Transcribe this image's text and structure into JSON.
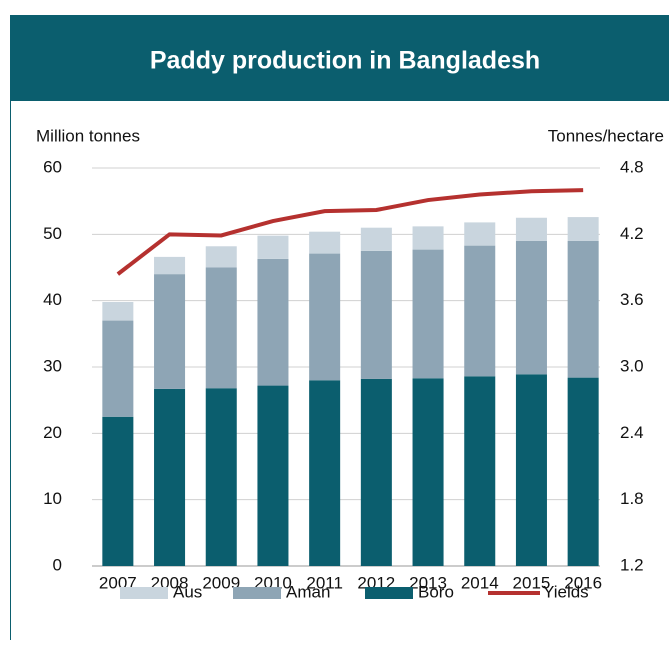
{
  "chart_data": {
    "type": "bar",
    "title": "Paddy production in Bangladesh",
    "y_label": "Million tonnes",
    "y2_label": "Tonnes/hectare",
    "categories": [
      "2007",
      "2008",
      "2009",
      "2010",
      "2011",
      "2012",
      "2013",
      "2014",
      "2015",
      "2016"
    ],
    "stacked": true,
    "series": [
      {
        "name": "Aus",
        "color": "#c9d5de",
        "values": [
          2.8,
          2.6,
          3.2,
          3.5,
          3.3,
          3.5,
          3.5,
          3.5,
          3.5,
          3.6
        ]
      },
      {
        "name": "Aman",
        "color": "#8ea5b5",
        "values": [
          14.5,
          17.3,
          18.2,
          19.1,
          19.1,
          19.3,
          19.4,
          19.7,
          20.1,
          20.6
        ]
      },
      {
        "name": "Boro",
        "color": "#0b5e6e",
        "values": [
          22.5,
          26.7,
          26.8,
          27.2,
          28.0,
          28.2,
          28.3,
          28.6,
          28.9,
          28.4
        ]
      },
      {
        "name": "Yields",
        "color": "#b5312f",
        "type": "line",
        "axis": "y2",
        "values": [
          3.84,
          4.2,
          4.19,
          4.32,
          4.41,
          4.42,
          4.51,
          4.56,
          4.59,
          4.6
        ]
      }
    ],
    "ylim": [
      0,
      60
    ],
    "yticks": [
      0,
      10,
      20,
      30,
      40,
      50,
      60
    ],
    "y2lim": [
      1.2,
      4.8
    ],
    "y2ticks": [
      1.2,
      1.8,
      2.4,
      {
        "value": 3,
        "label": "3.0"
      },
      3.6,
      4.2,
      4.8
    ],
    "grid": true,
    "legend": "bottom"
  }
}
